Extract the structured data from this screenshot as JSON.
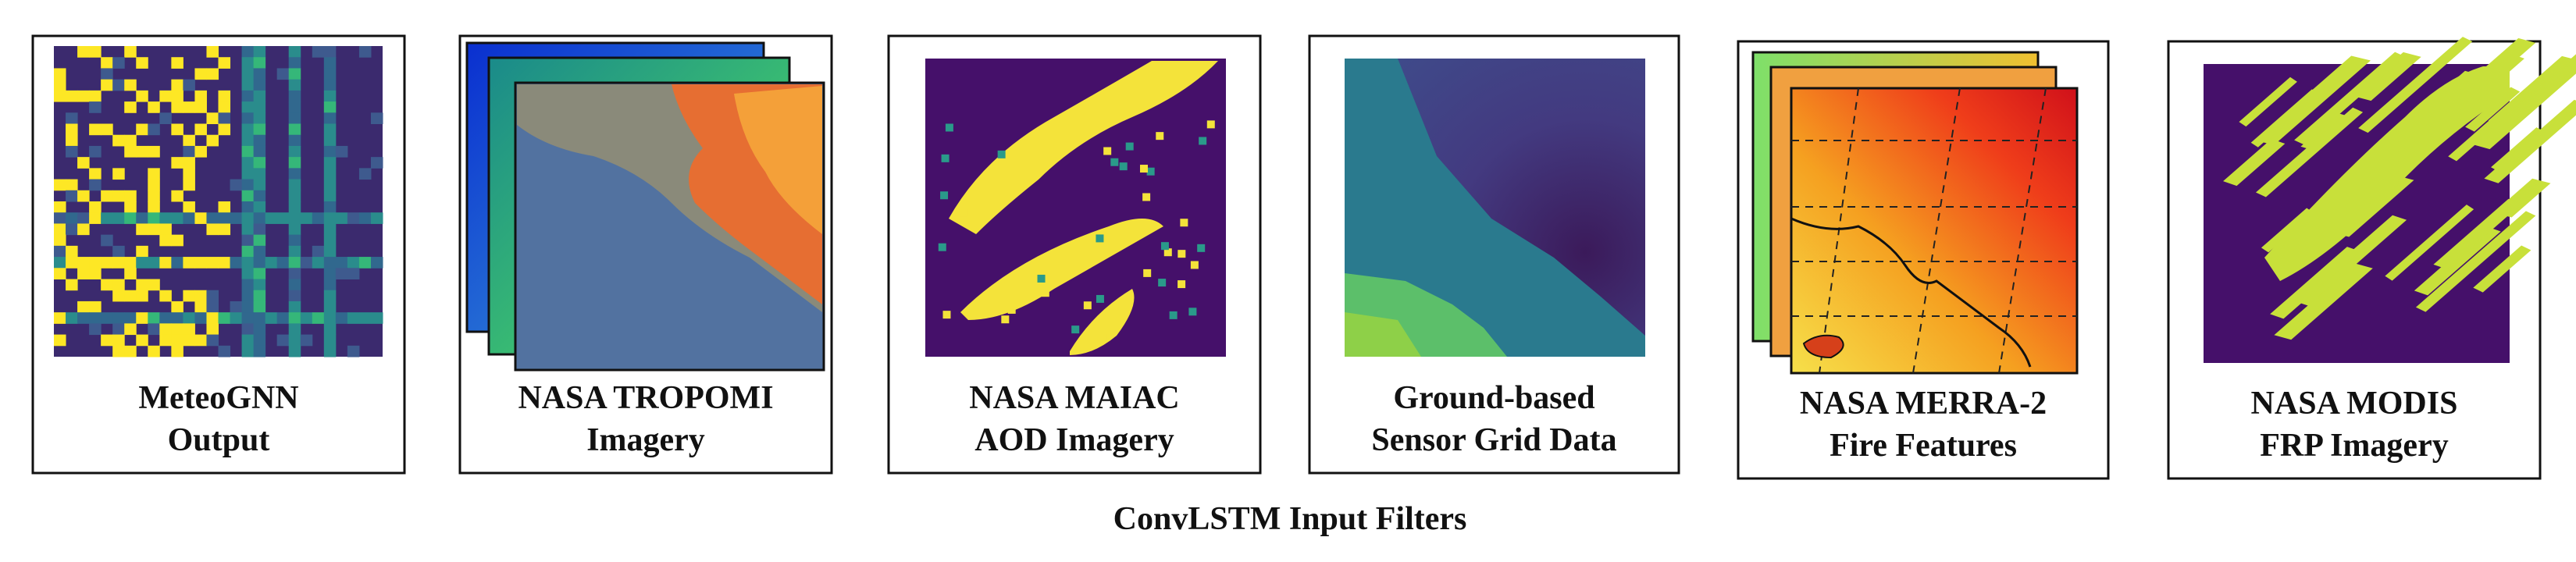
{
  "panels": [
    {
      "lines": [
        "MeteoGNN",
        "Output"
      ]
    },
    {
      "lines": [
        "NASA TROPOMI",
        "Imagery"
      ]
    },
    {
      "lines": [
        "NASA MAIAC",
        "AOD Imagery"
      ]
    },
    {
      "lines": [
        "Ground-based",
        "Sensor Grid Data"
      ]
    },
    {
      "lines": [
        "NASA MERRA-2",
        "Fire Features"
      ]
    },
    {
      "lines": [
        "NASA MODIS",
        "FRP Imagery"
      ]
    }
  ],
  "caption": "ConvLSTM Input Filters"
}
